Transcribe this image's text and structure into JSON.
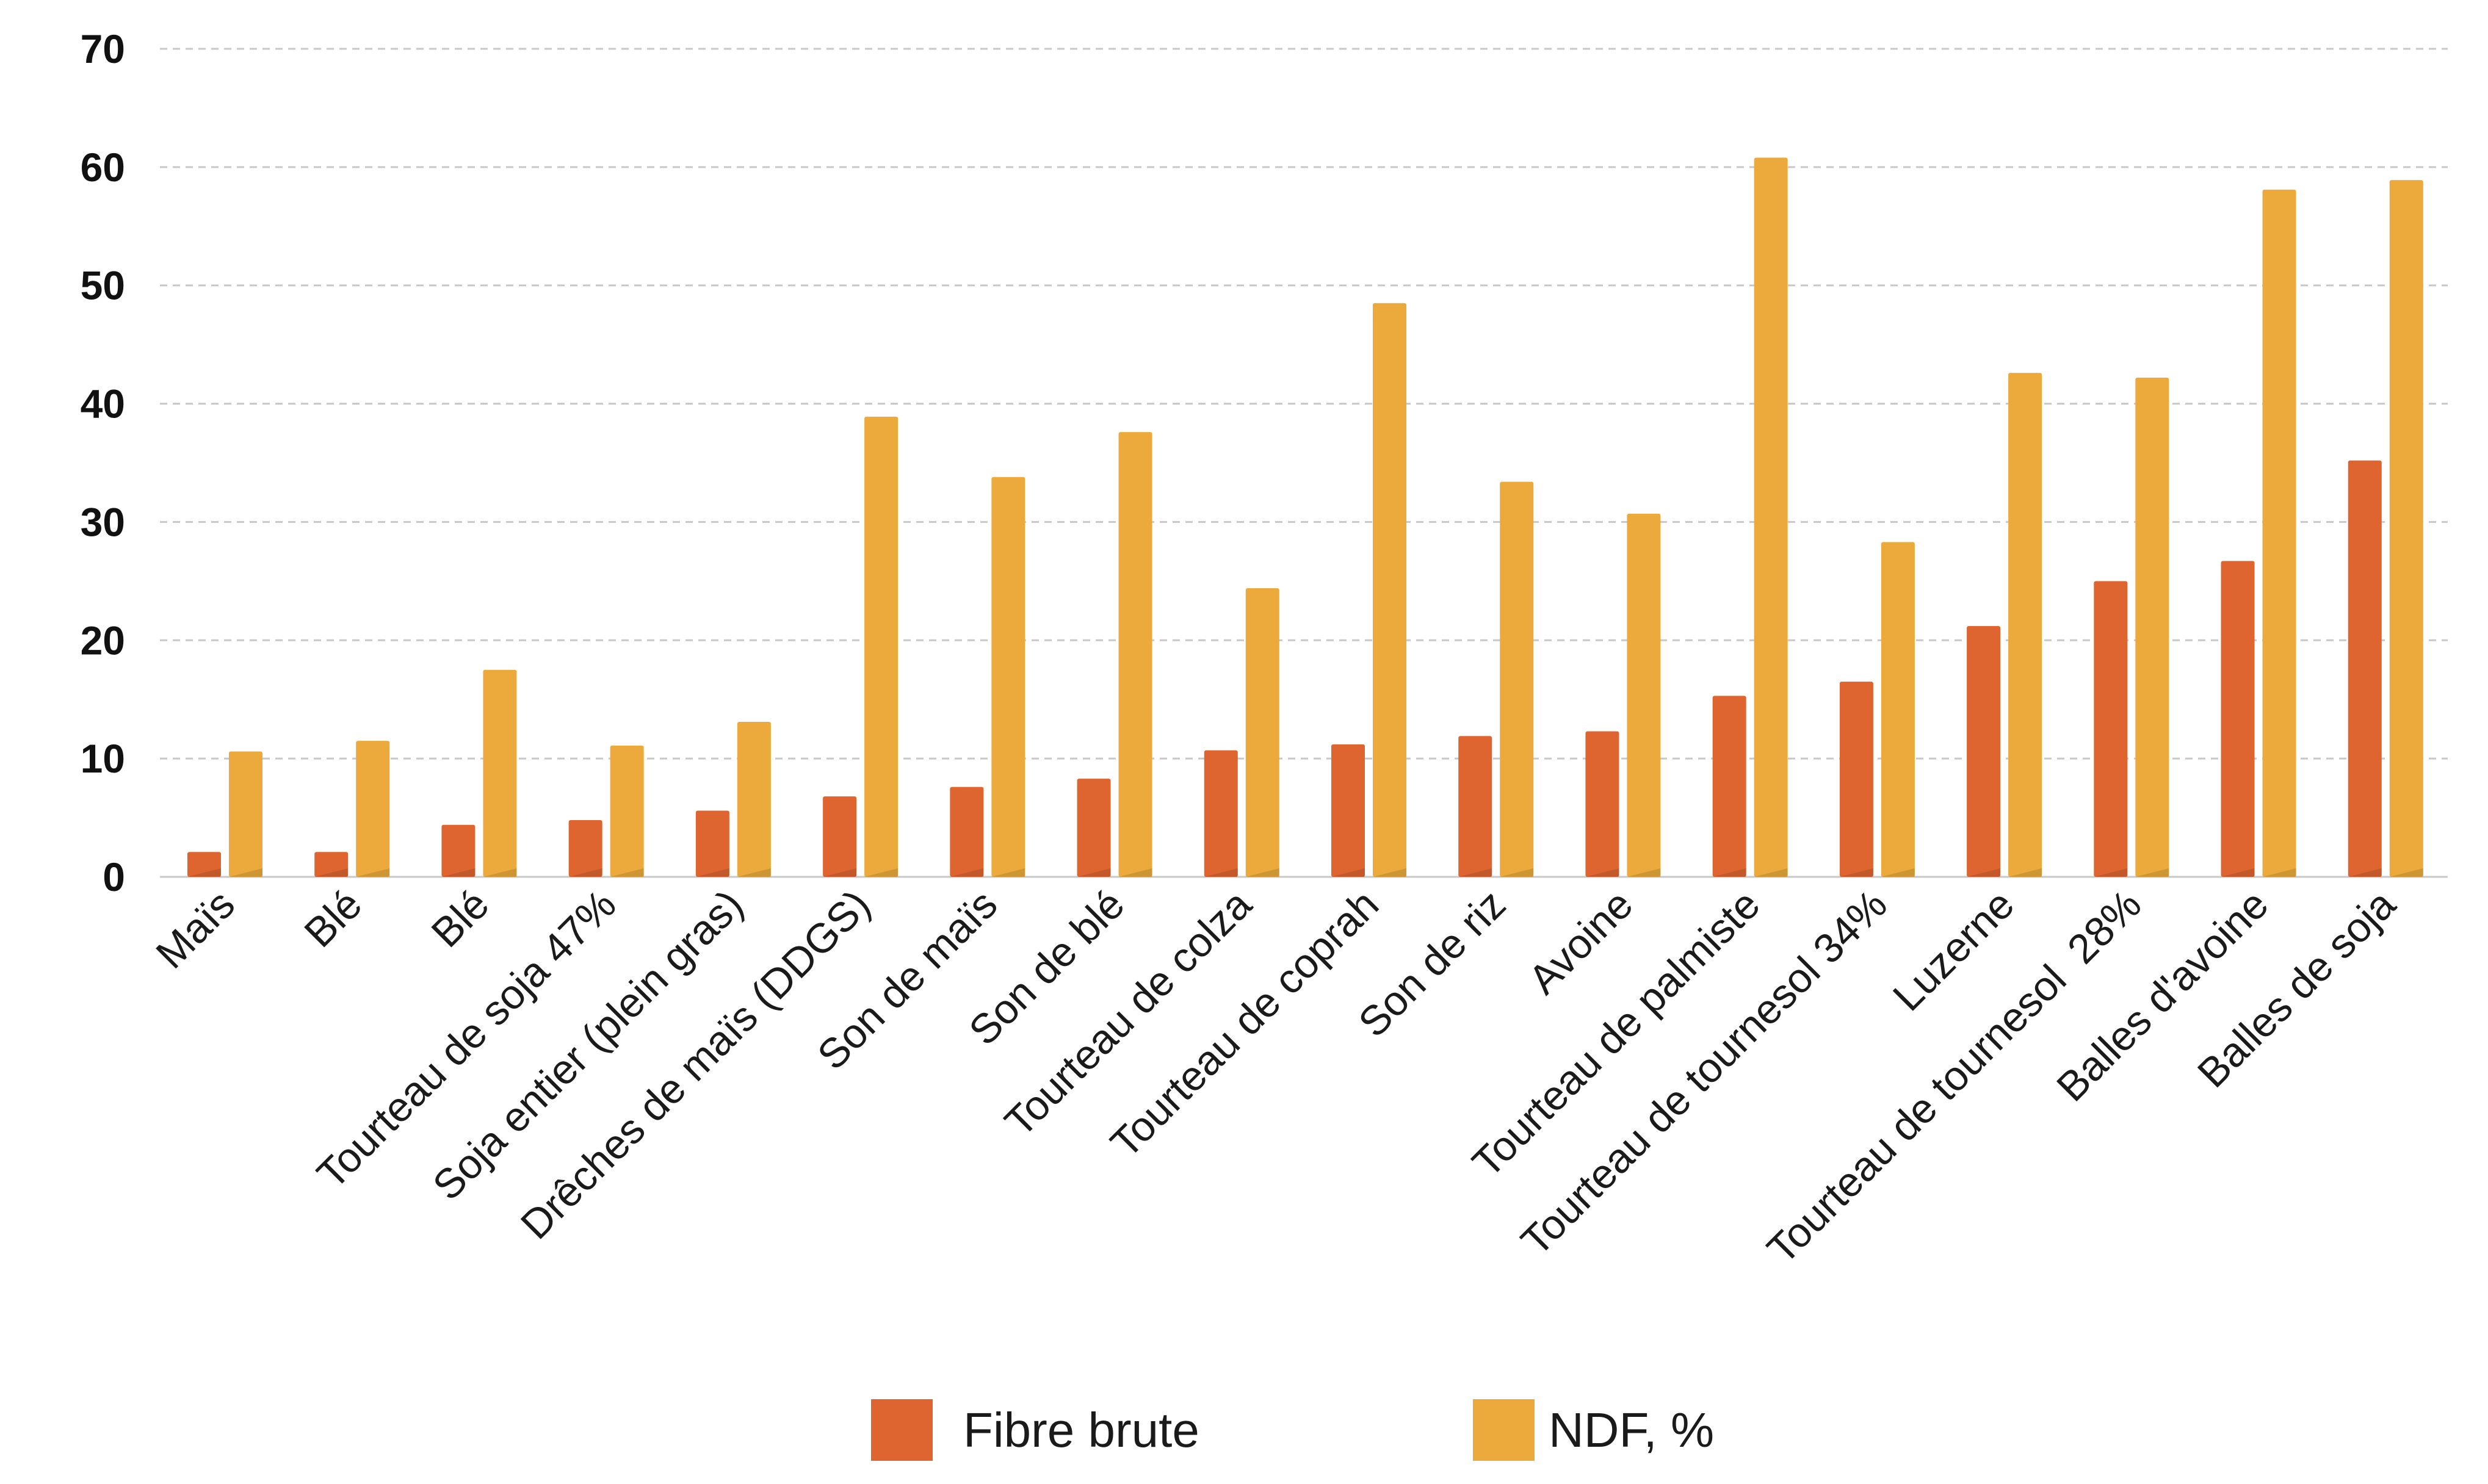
{
  "chart_data": {
    "type": "bar",
    "title": "",
    "xlabel": "",
    "ylabel": "",
    "ylim": [
      0,
      70
    ],
    "yticks": [
      0,
      10,
      20,
      30,
      40,
      50,
      60,
      70
    ],
    "grid": true,
    "legend_position": "bottom",
    "categories": [
      "Maïs",
      "Blé",
      "Blé",
      "Tourteau de soja 47%",
      "Soja entier (plein gras)",
      "Drêches de maïs (DDGS)",
      "Son de maïs",
      "Son de blé",
      "Tourteau de colza",
      "Tourteau de coprah",
      "Son de riz",
      "Avoine",
      "Tourteau de palmiste",
      "Tourteau de tournesol 34%",
      "Luzerne",
      "Tourteau de tournesol  28%",
      "Balles d'avoine",
      "Balles de soja"
    ],
    "series": [
      {
        "name": "Fibre brute",
        "color": "#DF6530",
        "values": [
          2.1,
          2.1,
          4.4,
          4.8,
          5.6,
          6.8,
          7.6,
          8.3,
          10.7,
          11.2,
          11.9,
          12.3,
          15.3,
          16.5,
          21.2,
          25.0,
          26.7,
          35.2
        ]
      },
      {
        "name": "NDF, %",
        "color": "#EBAA3B",
        "values": [
          10.6,
          11.5,
          17.5,
          11.1,
          13.1,
          38.9,
          33.8,
          37.6,
          24.4,
          48.5,
          33.4,
          30.7,
          60.8,
          28.3,
          42.6,
          42.2,
          58.1,
          58.9
        ]
      }
    ]
  }
}
